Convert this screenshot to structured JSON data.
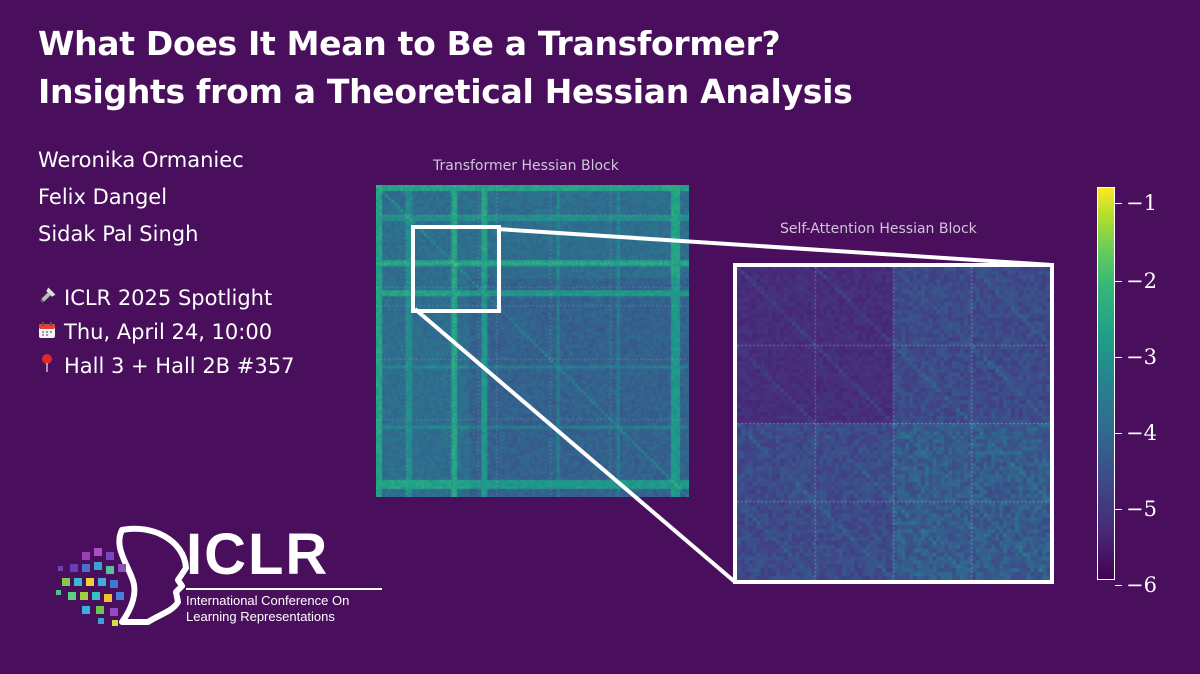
{
  "title": {
    "line1": "What Does It Mean to Be a Transformer?",
    "line2": "Insights from a Theoretical Hessian Analysis"
  },
  "authors": [
    "Weronika Ormaniec",
    "Felix Dangel",
    "Sidak Pal Singh"
  ],
  "event": {
    "spotlight": "ICLR 2025 Spotlight",
    "date": "Thu, April 24, 10:00",
    "location": "Hall 3 + Hall 2B #357",
    "icons": [
      "flashlight-icon",
      "calendar-icon",
      "pin-icon"
    ]
  },
  "figure": {
    "big_label": "Transformer Hessian Block",
    "zoom_label": "Self-Attention Hessian Block",
    "colorbar_ticks": [
      "−1",
      "−2",
      "−3",
      "−4",
      "−5",
      "−6"
    ],
    "colormap": "viridis"
  },
  "logo": {
    "word": "ICLR",
    "line1": "International Conference On",
    "line2": "Learning Representations"
  }
}
